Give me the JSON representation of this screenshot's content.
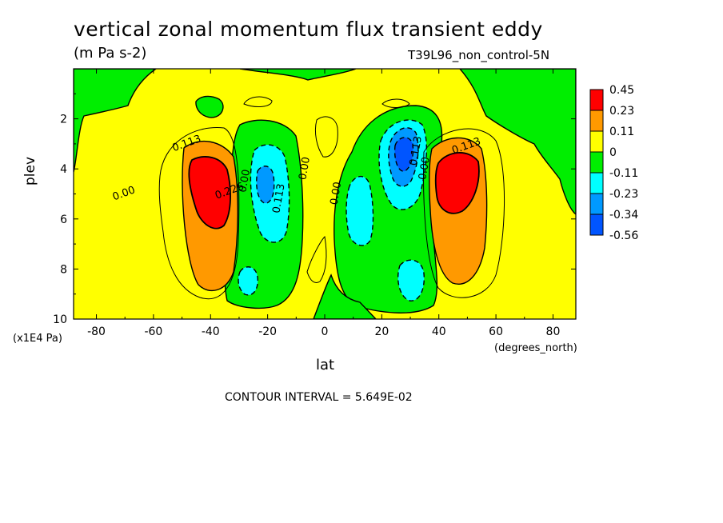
{
  "chart_data": {
    "type": "heatmap",
    "title": "vertical zonal momentum flux transient eddy",
    "units": "(m Pa s-2)",
    "run_label": "T39L96_non_control-5N",
    "xlabel": "lat",
    "x_units": "(degrees_north)",
    "ylabel": "plev",
    "y_units": "(x1E4 Pa)",
    "xlim": [
      -88,
      88
    ],
    "ylim": [
      10,
      0
    ],
    "x_ticks": [
      "-80",
      "-60",
      "-40",
      "-20",
      "0",
      "20",
      "40",
      "60",
      "80"
    ],
    "x_tick_values": [
      -80,
      -60,
      -40,
      -20,
      0,
      20,
      40,
      60,
      80
    ],
    "y_ticks": [
      "2",
      "4",
      "6",
      "8",
      "10"
    ],
    "y_tick_values": [
      2,
      4,
      6,
      8,
      10
    ],
    "contour_interval_text": "CONTOUR INTERVAL = 5.649E-02",
    "legend": [
      {
        "label": "0.45",
        "color": "#ff0000"
      },
      {
        "label": "0.23",
        "color": "#ff9900"
      },
      {
        "label": "0.11",
        "color": "#ffff00"
      },
      {
        "label": "0",
        "color": "#00ee00"
      },
      {
        "label": "-0.11",
        "color": "#00ffff"
      },
      {
        "label": "-0.23",
        "color": "#0099ff"
      },
      {
        "label": "-0.34",
        "color": "#0055ff"
      },
      {
        "label": "-0.56",
        "color": ""
      }
    ],
    "features": [
      {
        "kind": "max",
        "lat": -40,
        "plev": 4.6,
        "value": 0.45
      },
      {
        "kind": "max",
        "lat": 46,
        "plev": 4.6,
        "value": 0.45
      },
      {
        "kind": "min",
        "lat": -22,
        "plev": 4.8,
        "value": -0.23
      },
      {
        "kind": "min",
        "lat": 27,
        "plev": 3.6,
        "value": -0.34
      },
      {
        "kind": "min",
        "lat": 28,
        "plev": 8.7,
        "value": -0.11
      },
      {
        "kind": "min",
        "lat": 12,
        "plev": 6.0,
        "value": -0.11
      },
      {
        "kind": "min",
        "lat": -27,
        "plev": 8.6,
        "value": -0.11
      }
    ],
    "contour_labels": [
      {
        "text": "0.113",
        "lat": -48,
        "plev": 3.1
      },
      {
        "text": "0.226",
        "lat": -33,
        "plev": 5.0
      },
      {
        "text": "0.00",
        "lat": -27,
        "plev": 4.5
      },
      {
        "text": "0.00",
        "lat": -70,
        "plev": 5.1
      },
      {
        "text": "0.113",
        "lat": -15,
        "plev": 5.2
      },
      {
        "text": "0.00",
        "lat": -6,
        "plev": 4.0
      },
      {
        "text": "0.00",
        "lat": 5,
        "plev": 5.0
      },
      {
        "text": "0.113",
        "lat": 33,
        "plev": 3.3
      },
      {
        "text": "0.00",
        "lat": 36,
        "plev": 4.0
      },
      {
        "text": "0.113",
        "lat": 50,
        "plev": 3.2
      }
    ]
  }
}
